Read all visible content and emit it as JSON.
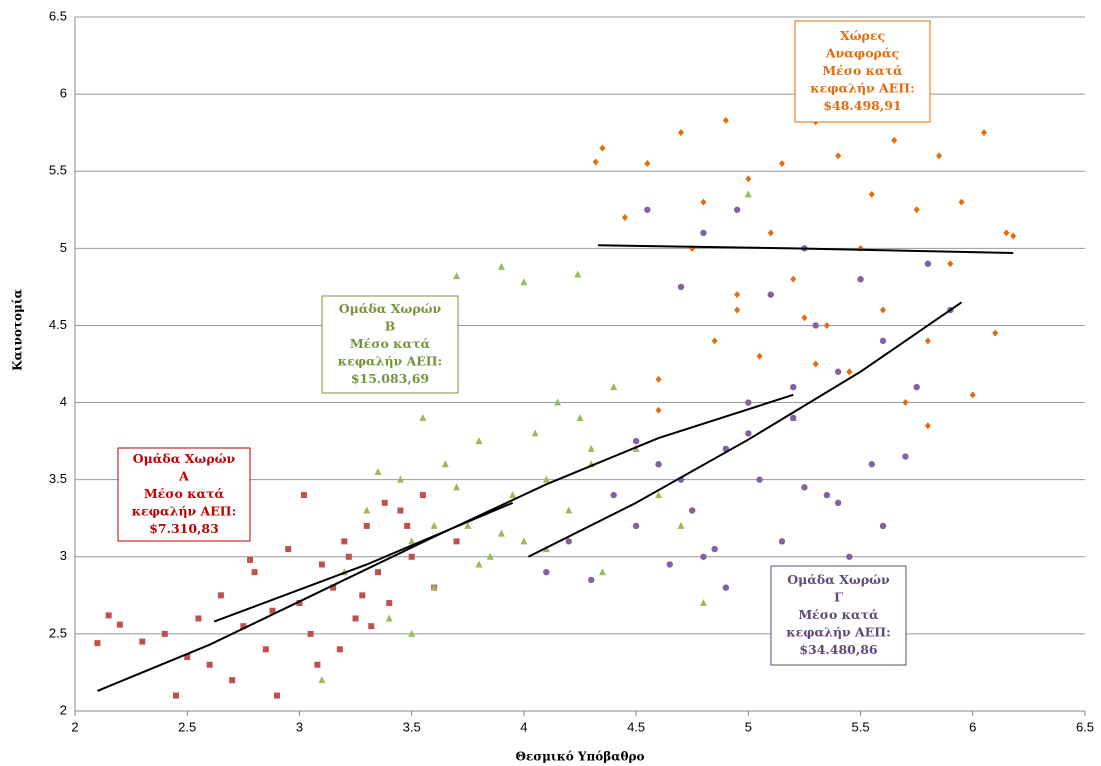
{
  "chart_data": {
    "type": "scatter",
    "x_label": "Θεσμικό Υπόβαθρο",
    "y_label": "Καινοτομία",
    "xlim": [
      2,
      6.5
    ],
    "xticks": [
      2,
      2.5,
      3,
      3.5,
      4,
      4.5,
      5,
      5.5,
      6,
      6.5
    ],
    "ylim": [
      2,
      6.5
    ],
    "yticks": [
      2,
      2.5,
      3,
      3.5,
      4,
      4.5,
      5,
      5.5,
      6,
      6.5
    ],
    "grid": true,
    "series": [
      {
        "color": "#c0504d",
        "marker": "square",
        "x": [
          2.1,
          2.15,
          2.2,
          2.3,
          2.4,
          2.45,
          2.5,
          2.55,
          2.6,
          2.65,
          2.7,
          2.75,
          2.8,
          2.85,
          2.9,
          2.95,
          3.0,
          3.05,
          3.1,
          3.15,
          3.2,
          3.25,
          3.3,
          3.35,
          3.4,
          3.45,
          3.5,
          3.55,
          3.6,
          3.7,
          2.88,
          3.02,
          3.18,
          3.28,
          3.38,
          2.78,
          3.08,
          3.22,
          3.32,
          3.48
        ],
        "values": [
          2.44,
          2.62,
          2.56,
          2.45,
          2.5,
          2.1,
          2.35,
          2.6,
          2.3,
          2.75,
          2.2,
          2.55,
          2.9,
          2.4,
          2.1,
          3.05,
          2.7,
          2.5,
          2.95,
          2.8,
          3.1,
          2.6,
          3.2,
          2.9,
          2.7,
          3.3,
          3.0,
          3.4,
          2.8,
          3.1,
          2.65,
          3.4,
          2.4,
          2.75,
          3.35,
          2.98,
          2.3,
          3.0,
          2.55,
          3.2
        ]
      },
      {
        "color": "#9bbb59",
        "marker": "triangle",
        "x": [
          3.1,
          3.2,
          3.3,
          3.4,
          3.45,
          3.5,
          3.55,
          3.6,
          3.65,
          3.7,
          3.75,
          3.8,
          3.85,
          3.9,
          3.95,
          4.0,
          4.05,
          4.1,
          4.15,
          4.2,
          4.25,
          4.3,
          4.35,
          4.4,
          4.5,
          4.6,
          4.7,
          4.8,
          5.0,
          5.2,
          3.7,
          3.9,
          4.0,
          4.24,
          3.5,
          3.6,
          3.8,
          4.1,
          4.3,
          3.35
        ],
        "values": [
          2.2,
          2.9,
          3.3,
          2.6,
          3.5,
          3.1,
          3.9,
          2.8,
          3.6,
          4.82,
          3.2,
          3.75,
          3.0,
          4.88,
          3.4,
          3.1,
          3.8,
          3.5,
          4.0,
          3.3,
          3.9,
          3.6,
          2.9,
          4.1,
          3.7,
          3.4,
          3.2,
          2.7,
          5.35,
          3.9,
          3.45,
          3.15,
          4.78,
          4.83,
          2.5,
          3.2,
          2.95,
          3.05,
          3.7,
          3.55
        ]
      },
      {
        "color": "#8064a2",
        "marker": "circle",
        "x": [
          4.1,
          4.2,
          4.3,
          4.4,
          4.5,
          4.55,
          4.6,
          4.65,
          4.7,
          4.75,
          4.8,
          4.85,
          4.9,
          4.95,
          5.0,
          5.05,
          5.1,
          5.15,
          5.2,
          5.25,
          5.3,
          5.35,
          5.4,
          5.45,
          5.5,
          5.55,
          5.6,
          5.7,
          5.8,
          5.9,
          4.7,
          4.9,
          5.0,
          5.2,
          5.4,
          4.5,
          4.8,
          5.25,
          5.6,
          5.75
        ],
        "values": [
          2.9,
          3.1,
          2.85,
          3.4,
          3.2,
          5.25,
          3.6,
          2.95,
          4.75,
          3.3,
          5.1,
          3.05,
          3.7,
          5.25,
          4.0,
          3.5,
          4.7,
          3.1,
          3.9,
          3.45,
          4.5,
          3.4,
          4.2,
          3.0,
          4.8,
          3.6,
          4.4,
          3.65,
          4.9,
          4.6,
          3.5,
          2.8,
          3.8,
          4.1,
          3.35,
          3.75,
          3.0,
          5.0,
          3.2,
          4.1
        ]
      },
      {
        "color": "#e46c0a",
        "marker": "diamond",
        "x": [
          4.32,
          4.35,
          4.45,
          4.55,
          4.6,
          4.7,
          4.75,
          4.8,
          4.85,
          4.9,
          4.95,
          5.0,
          5.05,
          5.1,
          5.15,
          5.2,
          5.25,
          5.3,
          5.35,
          5.4,
          5.45,
          5.5,
          5.55,
          5.6,
          5.65,
          5.7,
          5.75,
          5.8,
          5.85,
          5.9,
          5.95,
          6.0,
          6.05,
          6.1,
          6.15,
          6.18,
          4.6,
          4.95,
          5.3,
          5.8
        ],
        "values": [
          5.56,
          5.65,
          5.2,
          5.55,
          4.15,
          5.75,
          5.0,
          5.3,
          4.4,
          5.83,
          4.7,
          5.45,
          4.3,
          5.1,
          5.55,
          4.8,
          4.55,
          5.82,
          4.5,
          5.6,
          4.2,
          5.0,
          5.35,
          4.6,
          5.7,
          4.0,
          5.25,
          4.4,
          5.6,
          4.9,
          5.3,
          4.05,
          5.75,
          4.45,
          5.1,
          5.08,
          3.95,
          4.6,
          4.25,
          3.85
        ]
      }
    ],
    "trendlines": [
      {
        "color": "#000000",
        "x": [
          2.1,
          2.6,
          3.1,
          3.6,
          4.1,
          4.6,
          5.2
        ],
        "values": [
          2.13,
          2.43,
          2.78,
          3.13,
          3.47,
          3.77,
          4.05
        ]
      },
      {
        "color": "#000000",
        "x": [
          2.62,
          3.3,
          3.95
        ],
        "values": [
          2.58,
          2.95,
          3.35
        ]
      },
      {
        "color": "#000000",
        "x": [
          4.02,
          4.5,
          5.0,
          5.5,
          5.95
        ],
        "values": [
          3.0,
          3.35,
          3.76,
          4.2,
          4.65
        ]
      },
      {
        "color": "#000000",
        "x": [
          4.33,
          5.2,
          6.18
        ],
        "values": [
          5.02,
          5.0,
          4.97
        ]
      }
    ],
    "annotations": [
      {
        "color": "#c00000",
        "lines": [
          "Ομάδα Χωρών",
          "Α",
          "Μέσο κατά",
          "κεφαλήν ΑΕΠ:",
          "$7.310,83"
        ]
      },
      {
        "color": "#76923c",
        "lines": [
          "Ομάδα Χωρών",
          "Β",
          "Μέσο κατά",
          "κεφαλήν ΑΕΠ:",
          "$15.083,69"
        ]
      },
      {
        "color": "#5f497a",
        "lines": [
          "Ομάδα Χωρών",
          "Γ",
          "Μέσο κατά",
          "κεφαλήν ΑΕΠ:",
          "$34.480,86"
        ]
      },
      {
        "color": "#e46c0a",
        "lines": [
          "Χώρες",
          "Αναφοράς",
          "Μέσο κατά",
          "κεφαλήν ΑΕΠ:",
          "$48.498,91"
        ]
      }
    ]
  }
}
